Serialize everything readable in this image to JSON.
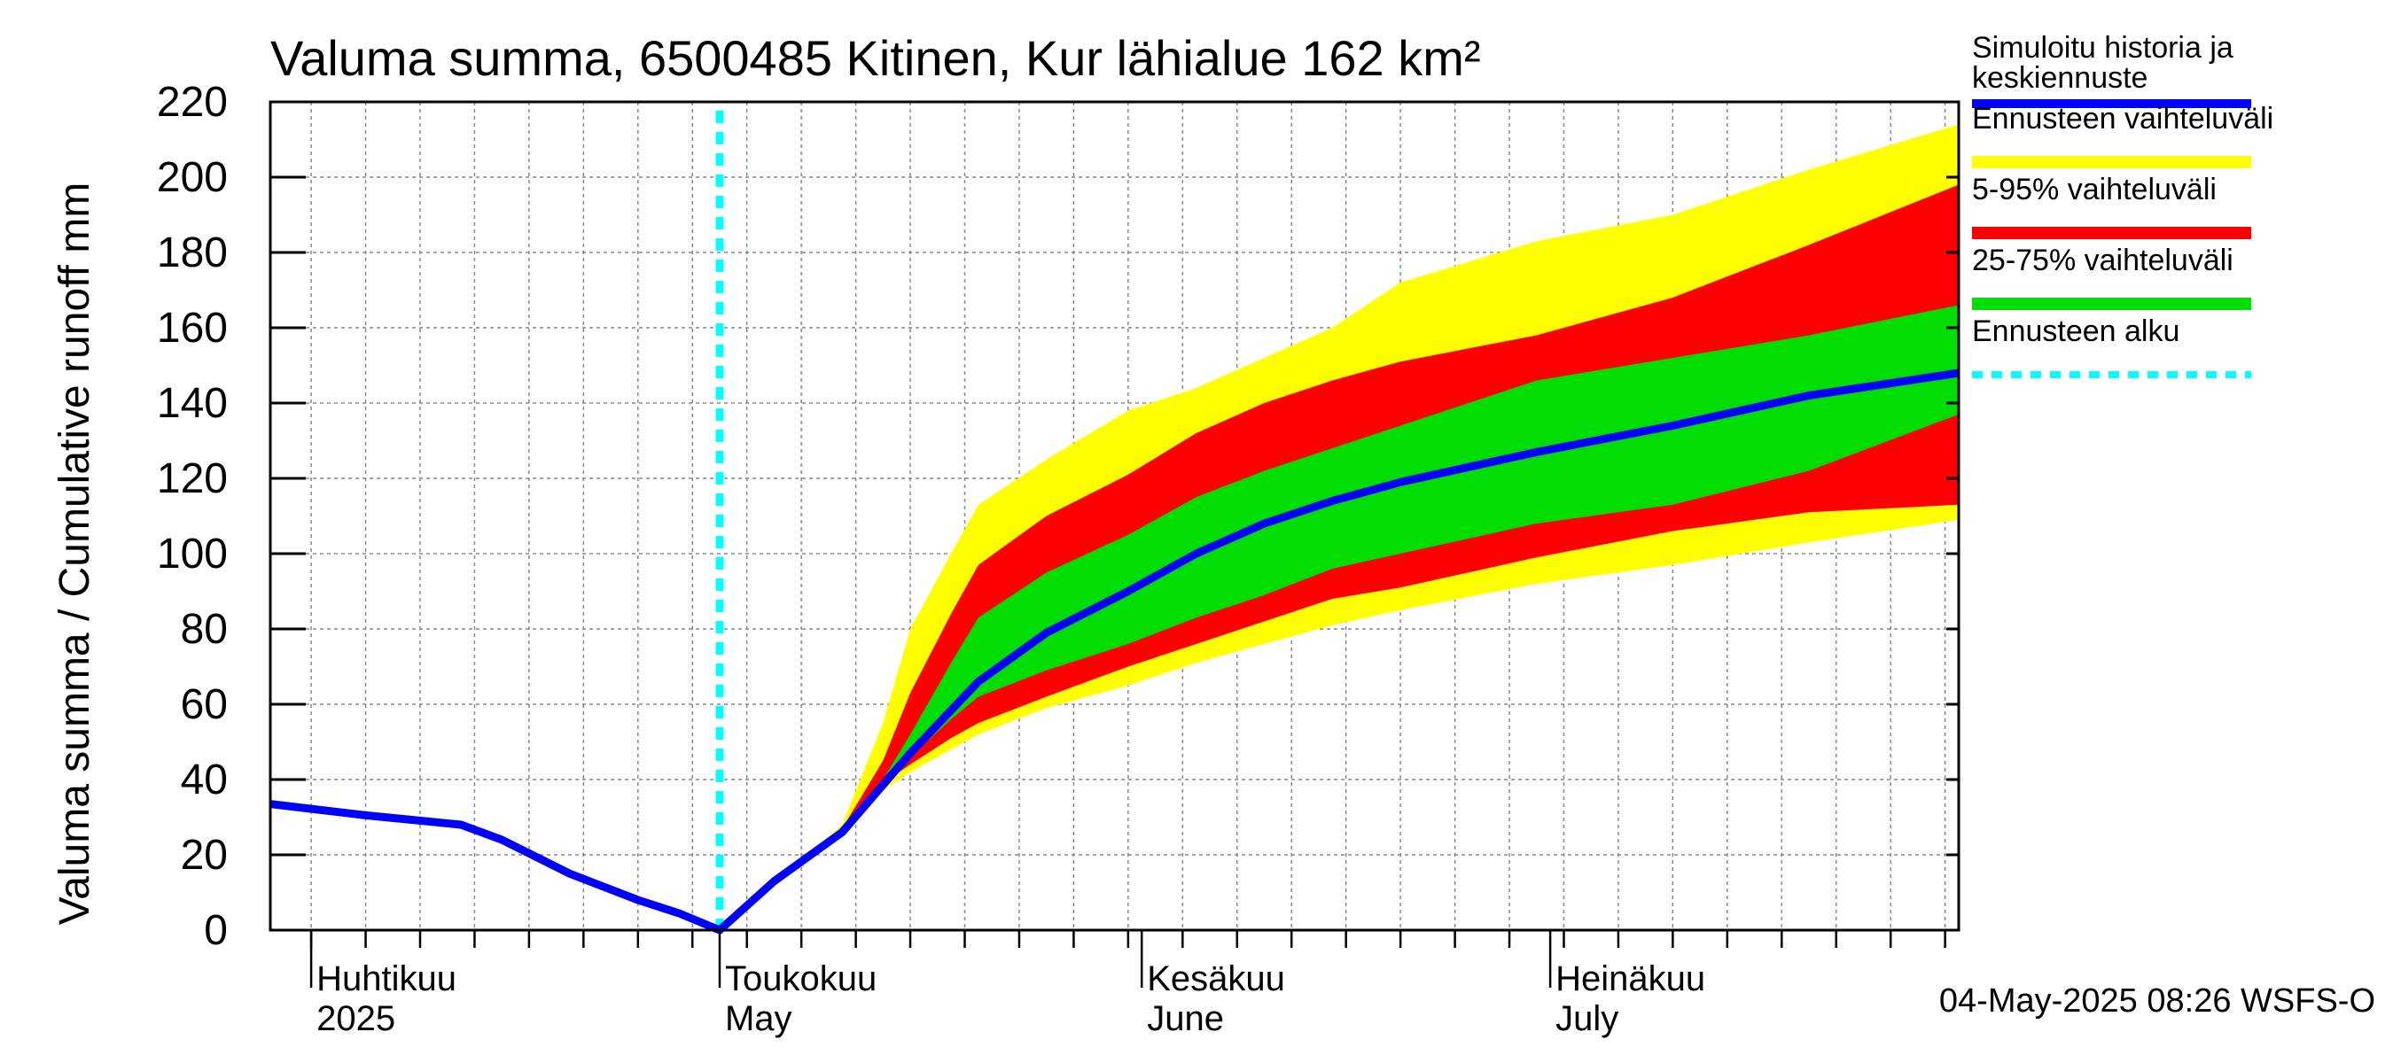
{
  "chart_data": {
    "type": "area",
    "title": "Valuma summa, 6500485 Kitinen, Kur lähialue 162 km²",
    "ylabel": "Valuma summa / Cumulative runoff    mm",
    "ylim": [
      0,
      220
    ],
    "yticks": [
      0,
      20,
      40,
      60,
      80,
      100,
      120,
      140,
      160,
      180,
      200,
      220
    ],
    "xlim": [
      "2025-03-29",
      "2025-07-31"
    ],
    "month_labels": [
      {
        "date": "2025-04-01",
        "fi": "Huhtikuu",
        "en": "2025"
      },
      {
        "date": "2025-05-01",
        "fi": "Toukokuu",
        "en": "May"
      },
      {
        "date": "2025-06-01",
        "fi": "Kesäkuu",
        "en": "June"
      },
      {
        "date": "2025-07-01",
        "fi": "Heinäkuu",
        "en": "July"
      }
    ],
    "grid": true,
    "legend_placement": "right",
    "forecast_start": "2025-05-01",
    "footer": "04-May-2025 08:26 WSFS-O",
    "legend": [
      {
        "key": "hist",
        "label1": "Simuloitu historia ja",
        "label2": "keskiennuste",
        "color": "#0000ff",
        "style": "line"
      },
      {
        "key": "range",
        "label1": "Ennusteen vaihteluväli",
        "label2": "",
        "color": "#ffff00",
        "style": "band"
      },
      {
        "key": "p5_95",
        "label1": "5-95% vaihteluväli",
        "label2": "",
        "color": "#ff0000",
        "style": "band"
      },
      {
        "key": "p25_75",
        "label1": "25-75% vaihteluväli",
        "label2": "",
        "color": "#00dd00",
        "style": "band"
      },
      {
        "key": "start",
        "label1": "Ennusteen alku",
        "label2": "",
        "color": "#00ffff",
        "style": "dashed"
      }
    ],
    "series": [
      {
        "name": "Simuloitu historia ja keskiennuste",
        "x": [
          "2025-03-29",
          "2025-04-05",
          "2025-04-12",
          "2025-04-15",
          "2025-04-20",
          "2025-04-25",
          "2025-04-28",
          "2025-05-01",
          "2025-05-05",
          "2025-05-10",
          "2025-05-15",
          "2025-05-20",
          "2025-05-25",
          "2025-05-31",
          "2025-06-05",
          "2025-06-10",
          "2025-06-15",
          "2025-06-20",
          "2025-06-30",
          "2025-07-10",
          "2025-07-20",
          "2025-07-31"
        ],
        "values": [
          33.5,
          30.5,
          28,
          24,
          15,
          8,
          4.5,
          0,
          13,
          26,
          47,
          66,
          79,
          90,
          100,
          108,
          114,
          119,
          127,
          134,
          142,
          148
        ]
      }
    ],
    "bands": [
      {
        "name": "Ennusteen vaihteluväli",
        "x": [
          "2025-05-01",
          "2025-05-05",
          "2025-05-10",
          "2025-05-13",
          "2025-05-15",
          "2025-05-18",
          "2025-05-20",
          "2025-05-25",
          "2025-05-31",
          "2025-06-05",
          "2025-06-10",
          "2025-06-15",
          "2025-06-20",
          "2025-06-30",
          "2025-07-10",
          "2025-07-20",
          "2025-07-31"
        ],
        "upper": [
          0,
          13,
          28,
          55,
          80,
          100,
          113,
          125,
          138,
          144,
          152,
          160,
          172,
          183,
          190,
          202,
          214
        ],
        "lower": [
          0,
          12,
          25,
          37,
          42,
          48,
          52,
          59,
          65,
          71,
          76,
          81,
          85,
          92,
          97,
          103,
          109
        ]
      },
      {
        "name": "5-95% vaihteluväli",
        "x": [
          "2025-05-01",
          "2025-05-05",
          "2025-05-10",
          "2025-05-13",
          "2025-05-15",
          "2025-05-18",
          "2025-05-20",
          "2025-05-25",
          "2025-05-31",
          "2025-06-05",
          "2025-06-10",
          "2025-06-15",
          "2025-06-20",
          "2025-06-30",
          "2025-07-10",
          "2025-07-20",
          "2025-07-31"
        ],
        "upper": [
          0,
          13,
          27,
          45,
          63,
          84,
          97,
          110,
          121,
          132,
          140,
          146,
          151,
          158,
          168,
          182,
          198
        ],
        "lower": [
          0,
          12,
          25,
          39,
          44,
          51,
          55,
          62,
          70,
          76,
          82,
          88,
          91,
          99,
          106,
          111,
          113
        ]
      },
      {
        "name": "25-75% vaihteluväli",
        "x": [
          "2025-05-01",
          "2025-05-05",
          "2025-05-10",
          "2025-05-13",
          "2025-05-15",
          "2025-05-18",
          "2025-05-20",
          "2025-05-25",
          "2025-05-31",
          "2025-06-05",
          "2025-06-10",
          "2025-06-15",
          "2025-06-20",
          "2025-06-30",
          "2025-07-10",
          "2025-07-20",
          "2025-07-31"
        ],
        "upper": [
          0,
          13,
          27,
          40,
          52,
          71,
          83,
          95,
          105,
          115,
          122,
          128,
          134,
          146,
          152,
          158,
          166
        ],
        "lower": [
          0,
          13,
          26,
          37,
          46,
          56,
          62,
          69,
          76,
          83,
          89,
          96,
          100,
          108,
          113,
          122,
          137
        ]
      }
    ]
  }
}
